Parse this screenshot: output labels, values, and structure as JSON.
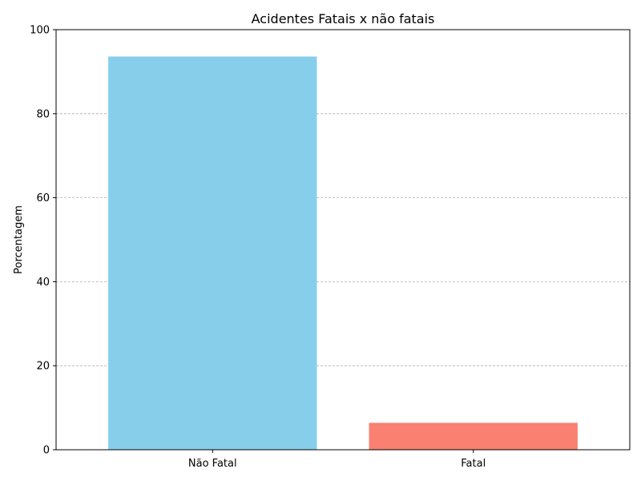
{
  "chart_data": {
    "type": "bar",
    "title": "Acidentes Fatais x não fatais",
    "xlabel": "",
    "ylabel": "Porcentagem",
    "categories": [
      "Não Fatal",
      "Fatal"
    ],
    "values": [
      93.6,
      6.4
    ],
    "colors": [
      "#87ceeb",
      "#fa8072"
    ],
    "ylim": [
      0,
      100
    ],
    "yticks": [
      0,
      20,
      40,
      60,
      80,
      100
    ],
    "grid": "y-dashed",
    "legend": "none"
  }
}
